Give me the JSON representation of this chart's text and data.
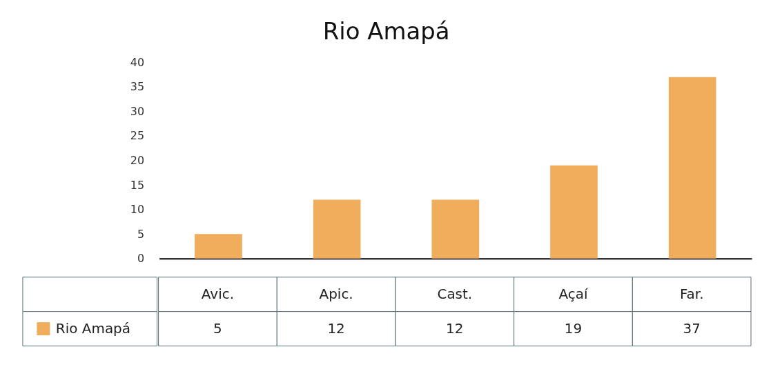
{
  "chart_data": {
    "type": "bar",
    "title": "Rio Amapá",
    "categories": [
      "Avic.",
      "Apic.",
      "Cast.",
      "Açaí",
      "Far."
    ],
    "series": [
      {
        "name": "Rio Amapá",
        "color": "#f0ad5c",
        "values": [
          5,
          12,
          12,
          19,
          37
        ]
      }
    ],
    "ylim": [
      0,
      40
    ],
    "yticks": [
      0,
      5,
      10,
      15,
      20,
      25,
      30,
      35,
      40
    ],
    "grid": false,
    "legend": "bottom",
    "data_labels": true
  }
}
